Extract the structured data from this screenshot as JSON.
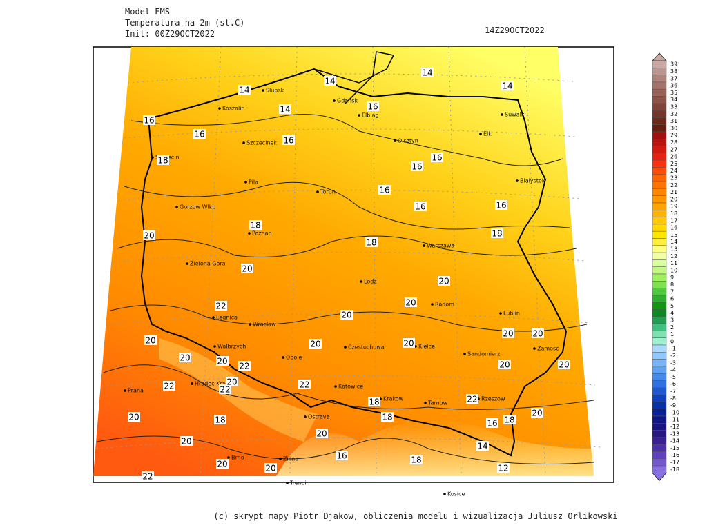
{
  "header": {
    "model": "Model EMS",
    "variable": "Temperatura na 2m (st.C)",
    "init": "Init: 00Z29OCT2022",
    "valid": "14Z29OCT2022"
  },
  "colorbar": {
    "labels": [
      39,
      38,
      37,
      36,
      35,
      34,
      33,
      32,
      31,
      30,
      29,
      28,
      27,
      26,
      25,
      24,
      23,
      22,
      21,
      20,
      19,
      18,
      17,
      16,
      15,
      14,
      13,
      12,
      11,
      10,
      9,
      8,
      7,
      6,
      5,
      4,
      3,
      2,
      1,
      0,
      -1,
      -2,
      -3,
      -4,
      -5,
      -6,
      -7,
      -8,
      -9,
      -10,
      -11,
      -12,
      -13,
      -14,
      -15,
      -16,
      -17,
      -18
    ]
  },
  "cities": [
    "Slupsk",
    "Koszalin",
    "Gdansk",
    "Elblag",
    "Olsztyn",
    "Suwalki",
    "Elk",
    "Szczecinek",
    "Szczecin",
    "Pila",
    "Torun",
    "Bialystok",
    "Gorzow Wlkp",
    "Poznan",
    "Warszawa",
    "Zielona Gora",
    "Lodz",
    "Radom",
    "Lublin",
    "Legnica",
    "Wroclaw",
    "Walbrzych",
    "Opole",
    "Czestochowa",
    "Kielce",
    "Sandomierz",
    "Zamosc",
    "Katowice",
    "Krakow",
    "Tarnow",
    "Rzeszow",
    "Hradec Kralove",
    "Praha",
    "Ostrava",
    "Zilina",
    "Brno",
    "Trencin",
    "Kosice"
  ],
  "contour_labels": [
    14,
    14,
    14,
    14,
    14,
    16,
    16,
    16,
    16,
    16,
    16,
    16,
    16,
    16,
    18,
    18,
    18,
    18,
    20,
    20,
    20,
    20,
    20,
    20,
    20,
    20,
    20,
    20,
    20,
    20,
    22,
    22,
    22,
    22,
    22,
    20,
    20,
    18,
    18,
    18,
    22,
    20,
    20,
    20,
    20,
    20,
    16,
    18,
    14,
    12,
    16,
    18,
    22,
    20,
    20
  ],
  "footer": "(c) skrypt mapy Piotr Djakow, obliczenia modelu i wizualizacja Juliusz Orlikowski"
}
